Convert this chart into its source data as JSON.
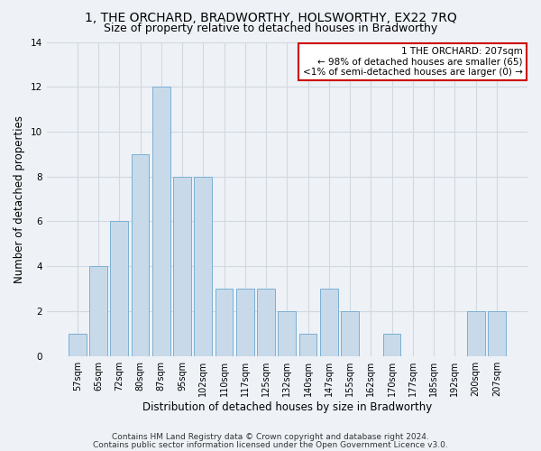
{
  "title": "1, THE ORCHARD, BRADWORTHY, HOLSWORTHY, EX22 7RQ",
  "subtitle": "Size of property relative to detached houses in Bradworthy",
  "xlabel": "Distribution of detached houses by size in Bradworthy",
  "ylabel": "Number of detached properties",
  "categories": [
    "57sqm",
    "65sqm",
    "72sqm",
    "80sqm",
    "87sqm",
    "95sqm",
    "102sqm",
    "110sqm",
    "117sqm",
    "125sqm",
    "132sqm",
    "140sqm",
    "147sqm",
    "155sqm",
    "162sqm",
    "170sqm",
    "177sqm",
    "185sqm",
    "192sqm",
    "200sqm",
    "207sqm"
  ],
  "values": [
    1,
    4,
    6,
    9,
    12,
    8,
    8,
    3,
    3,
    3,
    2,
    1,
    3,
    2,
    0,
    1,
    0,
    0,
    0,
    2,
    2
  ],
  "bar_color": "#c8daea",
  "bar_edge_color": "#7aafd4",
  "annotation_text": "1 THE ORCHARD: 207sqm\n← 98% of detached houses are smaller (65)\n<1% of semi-detached houses are larger (0) →",
  "annotation_box_color": "#ffffff",
  "annotation_border_color": "#cc0000",
  "ylim": [
    0,
    14
  ],
  "yticks": [
    0,
    2,
    4,
    6,
    8,
    10,
    12,
    14
  ],
  "grid_color": "#d0d8e0",
  "bg_color": "#eef2f7",
  "footer_line1": "Contains HM Land Registry data © Crown copyright and database right 2024.",
  "footer_line2": "Contains public sector information licensed under the Open Government Licence v3.0.",
  "title_fontsize": 10,
  "subtitle_fontsize": 9,
  "xlabel_fontsize": 8.5,
  "ylabel_fontsize": 8.5,
  "tick_fontsize": 7,
  "annotation_fontsize": 7.5,
  "footer_fontsize": 6.5
}
